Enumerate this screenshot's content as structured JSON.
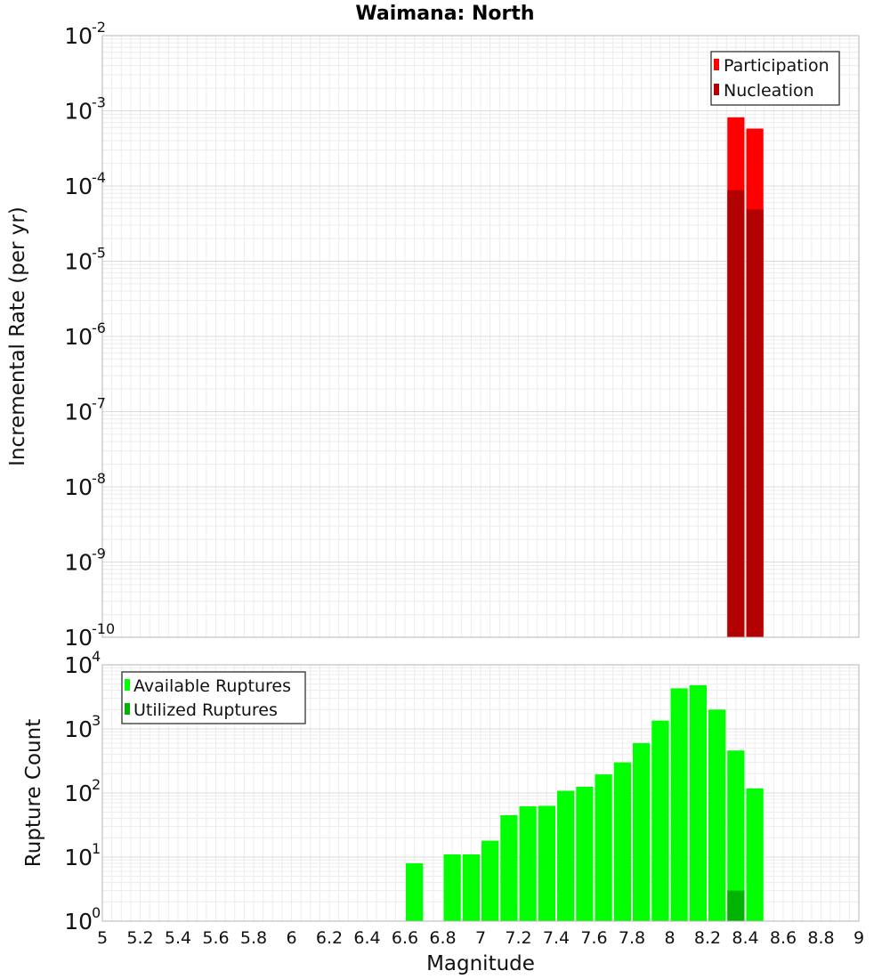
{
  "title": "Waimana: North",
  "chart_data": [
    {
      "type": "bar",
      "yscale": "log",
      "ylabel": "Incremental Rate (per yr)",
      "xlabel": "",
      "xlim": [
        5,
        9
      ],
      "ylim_exponents": [
        -10,
        -2
      ],
      "bin_width": 0.1,
      "legend_position": "top-right",
      "series": [
        {
          "name": "Participation",
          "color": "#ff0000",
          "x": [
            8.35,
            8.45
          ],
          "values": [
            0.00082,
            0.00058
          ]
        },
        {
          "name": "Nucleation",
          "color": "#b30000",
          "x": [
            8.35,
            8.45
          ],
          "values": [
            8.8e-05,
            4.9e-05
          ]
        }
      ]
    },
    {
      "type": "bar",
      "yscale": "log",
      "ylabel": "Rupture Count",
      "xlabel": "Magnitude",
      "xlim": [
        5,
        9
      ],
      "ylim_exponents": [
        0,
        4
      ],
      "bin_width": 0.1,
      "legend_position": "top-left",
      "series": [
        {
          "name": "Available Ruptures",
          "color": "#00ff00",
          "x": [
            6.65,
            6.75,
            6.85,
            6.95,
            7.05,
            7.15,
            7.25,
            7.35,
            7.45,
            7.55,
            7.65,
            7.75,
            7.85,
            7.95,
            8.05,
            8.15,
            8.25,
            8.35,
            8.45
          ],
          "values": [
            8,
            1,
            11,
            11,
            18,
            45,
            62,
            63,
            108,
            125,
            195,
            300,
            600,
            1350,
            4300,
            4800,
            2000,
            460,
            118
          ]
        },
        {
          "name": "Utilized Ruptures",
          "color": "#00b300",
          "x": [
            8.35,
            8.45
          ],
          "values": [
            3,
            1
          ]
        }
      ]
    }
  ],
  "x_ticks": [
    "5",
    "5.2",
    "5.4",
    "5.6",
    "5.8",
    "6",
    "6.2",
    "6.4",
    "6.6",
    "6.8",
    "7",
    "7.2",
    "7.4",
    "7.6",
    "7.8",
    "8",
    "8.2",
    "8.4",
    "8.6",
    "8.8",
    "9"
  ],
  "top_y_ticks": [
    {
      "base": "10",
      "exp": "-2"
    },
    {
      "base": "10",
      "exp": "-3"
    },
    {
      "base": "10",
      "exp": "-4"
    },
    {
      "base": "10",
      "exp": "-5"
    },
    {
      "base": "10",
      "exp": "-6"
    },
    {
      "base": "10",
      "exp": "-7"
    },
    {
      "base": "10",
      "exp": "-8"
    },
    {
      "base": "10",
      "exp": "-9"
    },
    {
      "base": "10",
      "exp": "-10"
    }
  ],
  "bottom_y_ticks": [
    {
      "base": "10",
      "exp": "4"
    },
    {
      "base": "10",
      "exp": "3"
    },
    {
      "base": "10",
      "exp": "2"
    },
    {
      "base": "10",
      "exp": "1"
    },
    {
      "base": "10",
      "exp": "0"
    }
  ]
}
